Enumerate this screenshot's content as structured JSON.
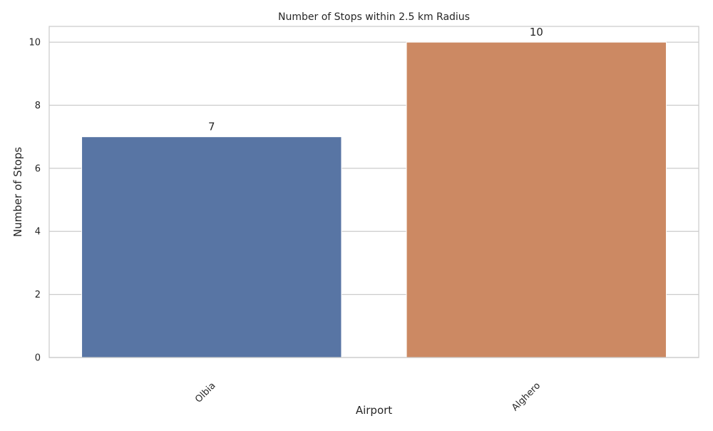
{
  "chart_data": {
    "type": "bar",
    "title": "Number of Stops within 2.5 km Radius",
    "xlabel": "Airport",
    "ylabel": "Number of Stops",
    "categories": [
      "Olbia",
      "Alghero"
    ],
    "values": [
      7,
      10
    ],
    "data_labels": [
      "7",
      "10"
    ],
    "colors": [
      "#5875a4",
      "#cc8963"
    ],
    "ylim": [
      0,
      10.5
    ],
    "yticks": [
      0,
      2,
      4,
      6,
      8,
      10
    ],
    "ytick_labels": [
      "0",
      "2",
      "4",
      "6",
      "8",
      "10"
    ],
    "grid": "y",
    "legend": "none"
  }
}
